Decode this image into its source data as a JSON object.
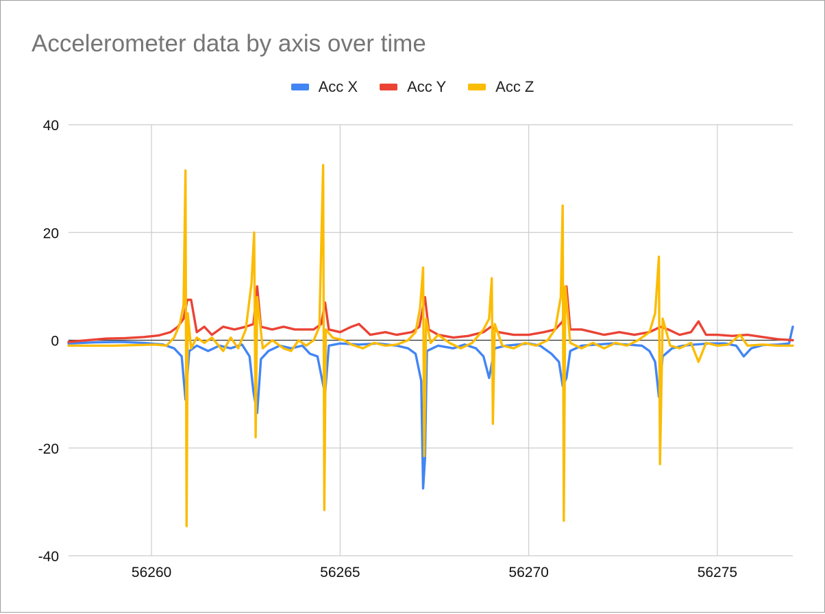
{
  "chart_data": {
    "type": "line",
    "title": "Accelerometer data by axis over time",
    "xlabel": "",
    "ylabel": "",
    "xlim": [
      56257.8,
      56277.0
    ],
    "ylim": [
      -40,
      40
    ],
    "x_ticks": [
      56260,
      56265,
      56270,
      56275
    ],
    "y_ticks": [
      40,
      20,
      0,
      -20,
      -40
    ],
    "x_tick_labels": [
      "56260",
      "56265",
      "56270",
      "56275"
    ],
    "y_tick_labels": [
      "40",
      "20",
      "0",
      "-20",
      "-40"
    ],
    "grid": true,
    "legend_position": "top",
    "series": [
      {
        "name": "Acc X",
        "color": "#4285f4",
        "points": [
          [
            56257.8,
            -0.6
          ],
          [
            56258.5,
            -0.4
          ],
          [
            56259.2,
            -0.3
          ],
          [
            56259.8,
            -0.5
          ],
          [
            56260.3,
            -0.8
          ],
          [
            56260.6,
            -1.5
          ],
          [
            56260.8,
            -3.0
          ],
          [
            56260.9,
            -11.0
          ],
          [
            56261.0,
            -2.0
          ],
          [
            56261.2,
            -1.0
          ],
          [
            56261.5,
            -2.0
          ],
          [
            56261.8,
            -1.0
          ],
          [
            56262.1,
            -1.5
          ],
          [
            56262.4,
            -0.8
          ],
          [
            56262.6,
            -3.0
          ],
          [
            56262.7,
            -9.5
          ],
          [
            56262.8,
            -13.5
          ],
          [
            56262.9,
            -3.5
          ],
          [
            56263.1,
            -2.0
          ],
          [
            56263.4,
            -1.0
          ],
          [
            56263.7,
            -1.5
          ],
          [
            56264.0,
            -1.0
          ],
          [
            56264.2,
            -2.5
          ],
          [
            56264.4,
            -3.0
          ],
          [
            56264.5,
            -6.5
          ],
          [
            56264.6,
            -10.0
          ],
          [
            56264.7,
            -1.0
          ],
          [
            56265.0,
            -0.6
          ],
          [
            56265.5,
            -0.8
          ],
          [
            56266.0,
            -0.6
          ],
          [
            56266.5,
            -1.0
          ],
          [
            56266.8,
            -1.5
          ],
          [
            56267.0,
            -2.5
          ],
          [
            56267.15,
            -7.5
          ],
          [
            56267.2,
            -27.5
          ],
          [
            56267.25,
            -22.0
          ],
          [
            56267.3,
            -2.0
          ],
          [
            56267.6,
            -1.0
          ],
          [
            56268.0,
            -1.5
          ],
          [
            56268.3,
            -0.8
          ],
          [
            56268.6,
            -1.5
          ],
          [
            56268.8,
            -3.0
          ],
          [
            56268.95,
            -7.0
          ],
          [
            56269.1,
            -1.5
          ],
          [
            56269.4,
            -1.0
          ],
          [
            56269.7,
            -0.8
          ],
          [
            56270.0,
            -0.6
          ],
          [
            56270.3,
            -1.0
          ],
          [
            56270.6,
            -2.5
          ],
          [
            56270.8,
            -4.0
          ],
          [
            56270.9,
            -8.5
          ],
          [
            56271.0,
            -7.0
          ],
          [
            56271.1,
            -2.0
          ],
          [
            56271.4,
            -1.0
          ],
          [
            56271.8,
            -0.8
          ],
          [
            56272.2,
            -0.6
          ],
          [
            56272.6,
            -0.8
          ],
          [
            56273.0,
            -1.0
          ],
          [
            56273.2,
            -2.0
          ],
          [
            56273.35,
            -4.0
          ],
          [
            56273.45,
            -10.5
          ],
          [
            56273.55,
            -3.0
          ],
          [
            56273.8,
            -1.5
          ],
          [
            56274.1,
            -1.0
          ],
          [
            56274.4,
            -0.8
          ],
          [
            56274.8,
            -0.6
          ],
          [
            56275.2,
            -0.6
          ],
          [
            56275.5,
            -1.0
          ],
          [
            56275.7,
            -3.0
          ],
          [
            56275.9,
            -1.5
          ],
          [
            56276.2,
            -0.9
          ],
          [
            56276.6,
            -0.8
          ],
          [
            56276.9,
            -0.6
          ],
          [
            56277.0,
            2.5
          ]
        ]
      },
      {
        "name": "Acc Y",
        "color": "#ea4335",
        "points": [
          [
            56257.8,
            -0.3
          ],
          [
            56258.3,
            0.0
          ],
          [
            56258.8,
            0.3
          ],
          [
            56259.3,
            0.4
          ],
          [
            56259.8,
            0.6
          ],
          [
            56260.2,
            0.9
          ],
          [
            56260.5,
            1.5
          ],
          [
            56260.7,
            2.5
          ],
          [
            56260.85,
            4.0
          ],
          [
            56260.95,
            7.5
          ],
          [
            56261.05,
            7.5
          ],
          [
            56261.2,
            1.5
          ],
          [
            56261.4,
            2.5
          ],
          [
            56261.6,
            1.0
          ],
          [
            56261.9,
            2.5
          ],
          [
            56262.2,
            2.0
          ],
          [
            56262.5,
            2.5
          ],
          [
            56262.7,
            3.0
          ],
          [
            56262.8,
            10.0
          ],
          [
            56262.9,
            2.5
          ],
          [
            56263.2,
            2.0
          ],
          [
            56263.5,
            2.5
          ],
          [
            56263.8,
            2.0
          ],
          [
            56264.1,
            2.0
          ],
          [
            56264.3,
            2.0
          ],
          [
            56264.5,
            3.0
          ],
          [
            56264.6,
            7.0
          ],
          [
            56264.7,
            2.0
          ],
          [
            56265.0,
            1.5
          ],
          [
            56265.3,
            2.5
          ],
          [
            56265.5,
            3.0
          ],
          [
            56265.8,
            1.0
          ],
          [
            56266.2,
            1.5
          ],
          [
            56266.5,
            1.0
          ],
          [
            56266.9,
            1.5
          ],
          [
            56267.1,
            2.5
          ],
          [
            56267.25,
            8.0
          ],
          [
            56267.35,
            2.0
          ],
          [
            56267.6,
            1.0
          ],
          [
            56268.0,
            0.5
          ],
          [
            56268.4,
            0.8
          ],
          [
            56268.8,
            1.5
          ],
          [
            56269.0,
            2.5
          ],
          [
            56269.2,
            1.5
          ],
          [
            56269.6,
            1.0
          ],
          [
            56270.0,
            1.0
          ],
          [
            56270.4,
            1.5
          ],
          [
            56270.7,
            2.0
          ],
          [
            56270.9,
            3.5
          ],
          [
            56271.0,
            10.0
          ],
          [
            56271.1,
            2.0
          ],
          [
            56271.4,
            2.0
          ],
          [
            56271.7,
            1.5
          ],
          [
            56272.0,
            1.0
          ],
          [
            56272.4,
            1.5
          ],
          [
            56272.8,
            1.0
          ],
          [
            56273.2,
            1.5
          ],
          [
            56273.5,
            2.5
          ],
          [
            56273.7,
            2.0
          ],
          [
            56274.0,
            1.0
          ],
          [
            56274.3,
            1.5
          ],
          [
            56274.5,
            3.5
          ],
          [
            56274.7,
            1.0
          ],
          [
            56275.0,
            1.0
          ],
          [
            56275.4,
            0.8
          ],
          [
            56275.8,
            1.0
          ],
          [
            56276.2,
            0.6
          ],
          [
            56276.6,
            0.2
          ],
          [
            56277.0,
            0.0
          ]
        ]
      },
      {
        "name": "Acc Z",
        "color": "#fbbc04",
        "points": [
          [
            56257.8,
            -1.0
          ],
          [
            56258.4,
            -1.0
          ],
          [
            56259.0,
            -1.0
          ],
          [
            56259.6,
            -0.9
          ],
          [
            56260.1,
            -0.8
          ],
          [
            56260.4,
            -1.0
          ],
          [
            56260.6,
            0.5
          ],
          [
            56260.75,
            3.0
          ],
          [
            56260.85,
            6.5
          ],
          [
            56260.9,
            31.5
          ],
          [
            56260.93,
            -34.5
          ],
          [
            56260.96,
            5.0
          ],
          [
            56261.05,
            -1.5
          ],
          [
            56261.2,
            0.5
          ],
          [
            56261.4,
            -0.5
          ],
          [
            56261.6,
            0.5
          ],
          [
            56261.9,
            -2.0
          ],
          [
            56262.1,
            0.5
          ],
          [
            56262.3,
            -1.5
          ],
          [
            56262.5,
            2.0
          ],
          [
            56262.65,
            10.5
          ],
          [
            56262.72,
            20.0
          ],
          [
            56262.76,
            -18.0
          ],
          [
            56262.8,
            8.0
          ],
          [
            56262.95,
            -1.5
          ],
          [
            56263.2,
            0.0
          ],
          [
            56263.5,
            -1.5
          ],
          [
            56263.7,
            -2.0
          ],
          [
            56263.9,
            0.0
          ],
          [
            56264.1,
            -1.0
          ],
          [
            56264.3,
            0.0
          ],
          [
            56264.45,
            2.5
          ],
          [
            56264.55,
            32.5
          ],
          [
            56264.58,
            -31.5
          ],
          [
            56264.62,
            2.0
          ],
          [
            56264.8,
            0.5
          ],
          [
            56265.1,
            0.0
          ],
          [
            56265.3,
            -0.8
          ],
          [
            56265.6,
            -1.5
          ],
          [
            56265.9,
            -0.5
          ],
          [
            56266.2,
            -1.0
          ],
          [
            56266.5,
            -0.8
          ],
          [
            56266.8,
            0.0
          ],
          [
            56267.0,
            1.5
          ],
          [
            56267.12,
            6.0
          ],
          [
            56267.2,
            13.5
          ],
          [
            56267.23,
            -21.5
          ],
          [
            56267.28,
            4.0
          ],
          [
            56267.4,
            -0.5
          ],
          [
            56267.6,
            1.0
          ],
          [
            56267.9,
            -0.5
          ],
          [
            56268.2,
            -1.5
          ],
          [
            56268.5,
            -0.5
          ],
          [
            56268.8,
            2.0
          ],
          [
            56268.95,
            4.0
          ],
          [
            56269.02,
            11.5
          ],
          [
            56269.05,
            -15.5
          ],
          [
            56269.1,
            3.0
          ],
          [
            56269.3,
            -1.0
          ],
          [
            56269.6,
            -1.5
          ],
          [
            56269.9,
            -0.5
          ],
          [
            56270.2,
            -1.0
          ],
          [
            56270.5,
            0.0
          ],
          [
            56270.7,
            2.0
          ],
          [
            56270.85,
            8.0
          ],
          [
            56270.9,
            25.0
          ],
          [
            56270.93,
            -33.5
          ],
          [
            56270.97,
            10.0
          ],
          [
            56271.1,
            -0.5
          ],
          [
            56271.4,
            -1.5
          ],
          [
            56271.7,
            -0.5
          ],
          [
            56272.0,
            -1.5
          ],
          [
            56272.3,
            -0.5
          ],
          [
            56272.6,
            -1.0
          ],
          [
            56272.9,
            0.0
          ],
          [
            56273.2,
            1.5
          ],
          [
            56273.35,
            5.0
          ],
          [
            56273.45,
            15.5
          ],
          [
            56273.48,
            -23.0
          ],
          [
            56273.55,
            4.0
          ],
          [
            56273.75,
            -1.0
          ],
          [
            56274.0,
            -1.5
          ],
          [
            56274.3,
            -0.5
          ],
          [
            56274.5,
            -4.0
          ],
          [
            56274.7,
            -0.5
          ],
          [
            56275.0,
            -1.0
          ],
          [
            56275.3,
            -0.8
          ],
          [
            56275.6,
            1.0
          ],
          [
            56275.8,
            -1.0
          ],
          [
            56276.2,
            -0.8
          ],
          [
            56276.6,
            -1.0
          ],
          [
            56277.0,
            -1.0
          ]
        ]
      }
    ]
  }
}
